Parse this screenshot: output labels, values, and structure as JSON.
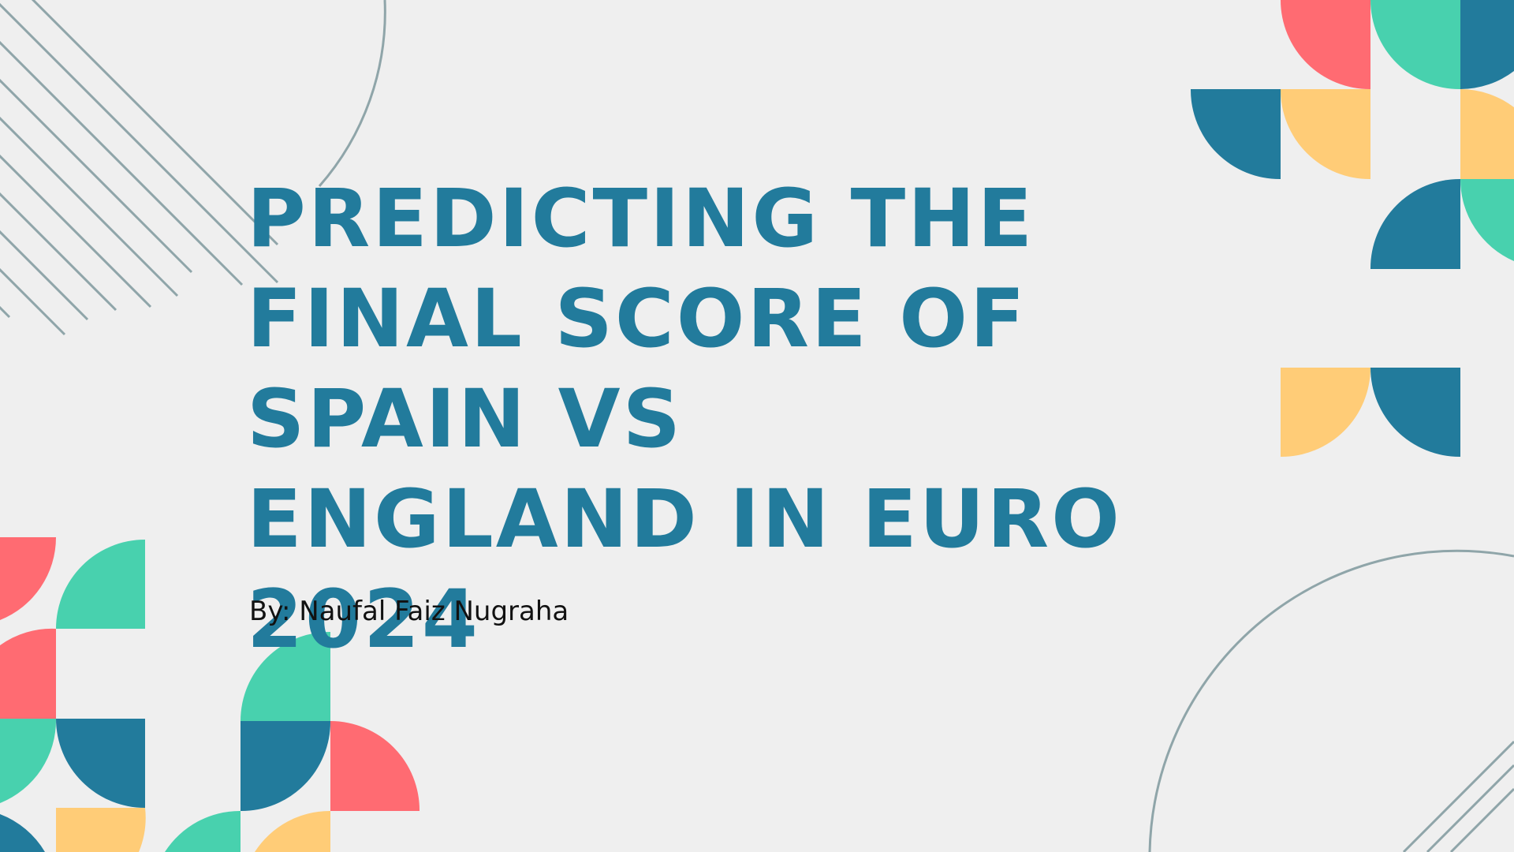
{
  "slide": {
    "title": "PREDICTING THE FINAL SCORE OF SPAIN VS ENGLAND IN EURO 2024",
    "subtitle": "By: Naufal Faiz Nugraha"
  },
  "colors": {
    "background": "#efefef",
    "title": "#227b9c",
    "subtitle": "#111111",
    "accent_red": "#ff6b72",
    "accent_green": "#48d1ae",
    "accent_blue": "#227b9c",
    "accent_yellow": "#ffcc77",
    "line_gray": "#8fa5a9"
  }
}
